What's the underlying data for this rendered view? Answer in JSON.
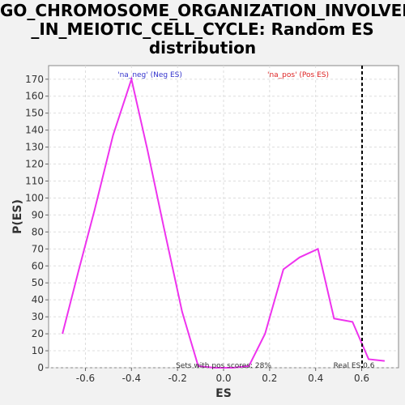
{
  "chart_data": {
    "type": "line",
    "title": "GO_CHROMOSOME_ORGANIZATION_INVOLVED\n_IN_MEIOTIC_CELL_CYCLE: Random ES\ndistribution",
    "xlabel": "ES",
    "ylabel": "P(ES)",
    "xlim": [
      -0.76,
      0.76
    ],
    "ylim": [
      0,
      178
    ],
    "xticks": [
      -0.6,
      -0.4,
      -0.2,
      0.0,
      0.2,
      0.4,
      0.6
    ],
    "xtick_labels": [
      "-0.6",
      "-0.4",
      "-0.2",
      "0.0",
      "0.2",
      "0.4",
      "0.6"
    ],
    "yticks": [
      0,
      10,
      20,
      30,
      40,
      50,
      60,
      70,
      80,
      90,
      100,
      110,
      120,
      130,
      140,
      150,
      160,
      170
    ],
    "ytick_labels": [
      "0",
      "10",
      "20",
      "30",
      "40",
      "50",
      "60",
      "70",
      "80",
      "90",
      "100",
      "110",
      "120",
      "130",
      "140",
      "150",
      "160",
      "170"
    ],
    "grid": true,
    "series": [
      {
        "color": "#ee33ee",
        "x": [
          -0.7,
          -0.63,
          -0.56,
          -0.48,
          -0.4,
          -0.33,
          -0.26,
          -0.18,
          -0.11,
          -0.04,
          0.04,
          0.11,
          0.18,
          0.26,
          0.33,
          0.41,
          0.48,
          0.56,
          0.63,
          0.7
        ],
        "y": [
          20,
          57,
          93,
          137,
          170,
          128,
          83,
          33,
          1,
          0,
          0,
          1,
          20,
          58,
          65,
          70,
          29,
          27,
          5,
          4
        ]
      }
    ],
    "real_es": 0.6,
    "annotations": {
      "neg_label": "'na_neg' (Neg ES)",
      "pos_label": "'na_pos' (Pos ES)",
      "pos_scores": "Sets with pos scores: 28%",
      "real_es_label": "Real ES 0.6"
    },
    "colors": {
      "neg": "#3333cc",
      "pos": "#dd2222",
      "line": "#ee33ee",
      "grid": "#dddddd",
      "marker": "#000000"
    }
  }
}
